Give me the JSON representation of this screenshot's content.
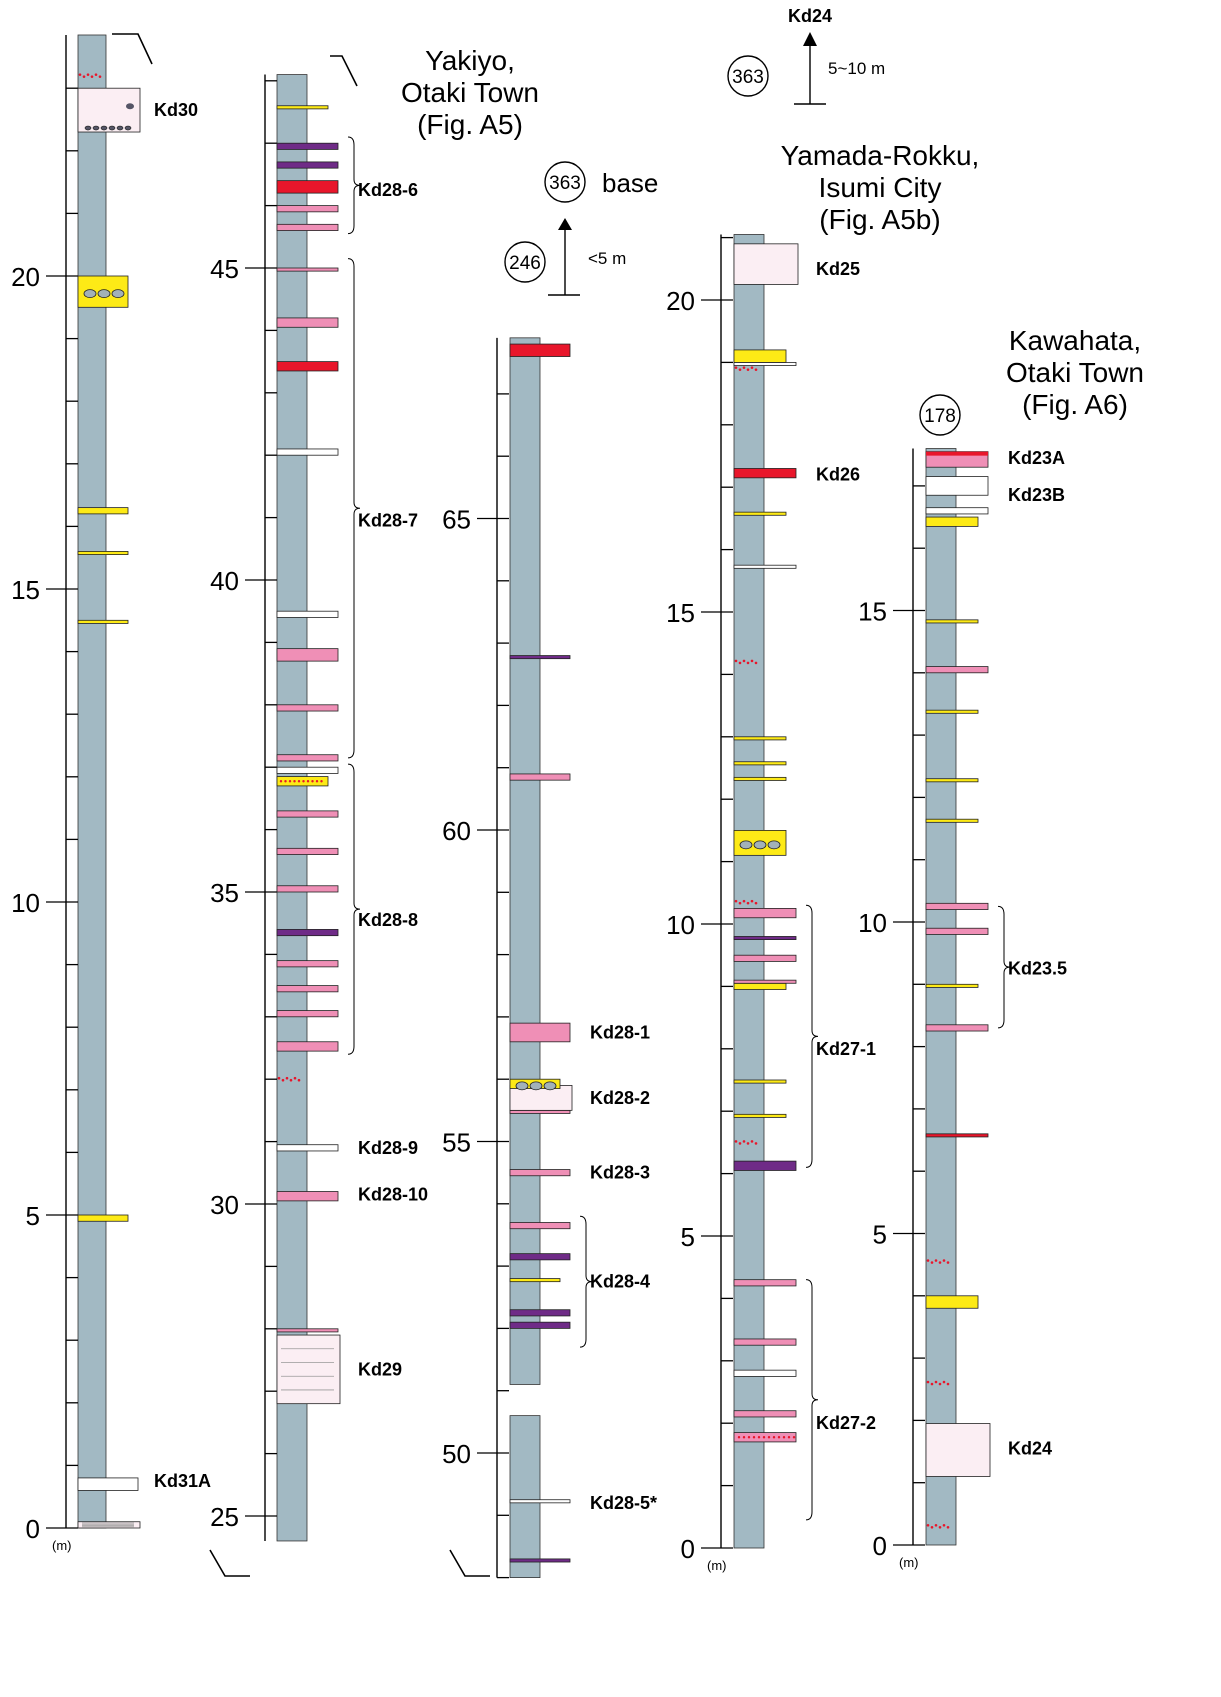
{
  "colors": {
    "column": "#a2b9c3",
    "pink": "#ef8fb6",
    "red": "#e8162b",
    "purple": "#6f2b87",
    "yellow": "#fdea16",
    "white": "#ffffff",
    "paleblock": "#fbeef3",
    "redDots": "#e8162b"
  },
  "unit_label": "(m)",
  "columns": [
    {
      "id": "c1",
      "title": [],
      "ticks": [
        "0",
        "5",
        "10",
        "15",
        "20"
      ],
      "layers": [
        {
          "top": 0.1,
          "base": 0.0,
          "kind": "block-lines"
        },
        {
          "top": 0.8,
          "base": 0.6,
          "kind": "white"
        },
        {
          "top": 5.0,
          "base": 4.9,
          "kind": "yellow"
        },
        {
          "top": 14.5,
          "base": 14.45,
          "kind": "yellow"
        },
        {
          "top": 15.6,
          "base": 15.55,
          "kind": "yellow"
        },
        {
          "top": 16.3,
          "base": 16.2,
          "kind": "yellow"
        },
        {
          "top": 20.0,
          "base": 19.5,
          "kind": "yellow-pebbles"
        },
        {
          "top": 23.0,
          "base": 22.3,
          "kind": "block-clasts"
        },
        {
          "top": 23.2,
          "base": 23.15,
          "kind": "reddots"
        }
      ],
      "tephra": [
        {
          "text": "Kd30",
          "depth": 22.65
        },
        {
          "text": "Kd31A",
          "depth": 0.75
        }
      ],
      "brackets": []
    },
    {
      "id": "c2",
      "title": [
        "Yakiyo,",
        "Otaki Town",
        "(Fig. A5)"
      ],
      "ticks": [
        "25",
        "30",
        "35",
        "40",
        "45"
      ],
      "layers": [
        {
          "top": 27.9,
          "base": 26.8,
          "kind": "block-lines"
        },
        {
          "top": 28.0,
          "base": 27.95,
          "kind": "pink"
        },
        {
          "top": 30.2,
          "base": 30.05,
          "kind": "pink"
        },
        {
          "top": 30.95,
          "base": 30.85,
          "kind": "white"
        },
        {
          "top": 32.0,
          "base": 31.95,
          "kind": "reddots"
        },
        {
          "top": 32.6,
          "base": 32.45,
          "kind": "pink"
        },
        {
          "top": 33.1,
          "base": 33.0,
          "kind": "pink"
        },
        {
          "top": 33.5,
          "base": 33.4,
          "kind": "pink"
        },
        {
          "top": 33.9,
          "base": 33.8,
          "kind": "pink"
        },
        {
          "top": 34.4,
          "base": 34.3,
          "kind": "purple"
        },
        {
          "top": 35.1,
          "base": 35.0,
          "kind": "pink"
        },
        {
          "top": 35.7,
          "base": 35.6,
          "kind": "pink"
        },
        {
          "top": 36.3,
          "base": 36.2,
          "kind": "pink"
        },
        {
          "top": 36.85,
          "base": 36.7,
          "kind": "yellow-dots"
        },
        {
          "top": 37.0,
          "base": 36.9,
          "kind": "white"
        },
        {
          "top": 37.2,
          "base": 37.1,
          "kind": "pink"
        },
        {
          "top": 38.0,
          "base": 37.9,
          "kind": "pink"
        },
        {
          "top": 38.9,
          "base": 38.7,
          "kind": "pink"
        },
        {
          "top": 39.5,
          "base": 39.4,
          "kind": "white"
        },
        {
          "top": 42.1,
          "base": 42.0,
          "kind": "white"
        },
        {
          "top": 43.5,
          "base": 43.35,
          "kind": "red"
        },
        {
          "top": 44.2,
          "base": 44.05,
          "kind": "pink"
        },
        {
          "top": 45.0,
          "base": 44.95,
          "kind": "pink"
        },
        {
          "top": 45.7,
          "base": 45.6,
          "kind": "pink"
        },
        {
          "top": 46.0,
          "base": 45.9,
          "kind": "pink"
        },
        {
          "top": 46.4,
          "base": 46.2,
          "kind": "red"
        },
        {
          "top": 46.7,
          "base": 46.6,
          "kind": "purple"
        },
        {
          "top": 47.0,
          "base": 46.9,
          "kind": "purple"
        },
        {
          "top": 47.6,
          "base": 47.55,
          "kind": "yellow"
        }
      ],
      "tephra": [
        {
          "text": "Kd28-6",
          "depth": 46.25
        },
        {
          "text": "Kd28-7",
          "depth": 40.95
        },
        {
          "text": "Kd28-8",
          "depth": 34.55
        },
        {
          "text": "Kd28-9",
          "depth": 30.9
        },
        {
          "text": "Kd28-10",
          "depth": 30.15
        },
        {
          "text": "Kd29",
          "depth": 27.35
        }
      ],
      "brackets": [
        {
          "top": 47.1,
          "base": 45.55
        },
        {
          "top": 45.15,
          "base": 37.15
        },
        {
          "top": 37.05,
          "base": 32.4
        }
      ]
    },
    {
      "id": "c3",
      "title": [],
      "ticks": [
        "50",
        "55",
        "60",
        "65"
      ],
      "layers": [
        {
          "top": 48.3,
          "base": 48.25,
          "kind": "purple"
        },
        {
          "top": 49.25,
          "base": 49.2,
          "kind": "white"
        },
        {
          "top": 52.1,
          "base": 52.0,
          "kind": "purple"
        },
        {
          "top": 52.3,
          "base": 52.2,
          "kind": "purple"
        },
        {
          "top": 52.8,
          "base": 52.75,
          "kind": "yellow"
        },
        {
          "top": 53.2,
          "base": 53.1,
          "kind": "purple"
        },
        {
          "top": 53.7,
          "base": 53.6,
          "kind": "pink"
        },
        {
          "top": 54.55,
          "base": 54.45,
          "kind": "pink"
        },
        {
          "top": 55.5,
          "base": 55.45,
          "kind": "pink"
        },
        {
          "top": 55.9,
          "base": 55.5,
          "kind": "white-block"
        },
        {
          "top": 56.0,
          "base": 55.85,
          "kind": "yellow-pebbles"
        },
        {
          "top": 56.9,
          "base": 56.6,
          "kind": "pink"
        },
        {
          "top": 60.9,
          "base": 60.8,
          "kind": "pink"
        },
        {
          "top": 62.8,
          "base": 62.75,
          "kind": "purple"
        },
        {
          "top": 67.8,
          "base": 67.6,
          "kind": "red"
        }
      ],
      "tephra": [
        {
          "text": "Kd28-1",
          "depth": 56.75
        },
        {
          "text": "Kd28-2",
          "depth": 55.7
        },
        {
          "text": "Kd28-3",
          "depth": 54.5
        },
        {
          "text": "Kd28-4",
          "depth": 52.75
        },
        {
          "text": "Kd28-5*",
          "depth": 49.2
        }
      ],
      "brackets": [
        {
          "top": 53.8,
          "base": 51.7
        }
      ],
      "marker": {
        "number": "363",
        "text": "base",
        "note": "<5 m"
      },
      "bottom_marker": {
        "number": "246"
      }
    },
    {
      "id": "c4",
      "title": [
        "Yamada-Rokku,",
        "Isumi City",
        "(Fig. A5b)"
      ],
      "ticks": [
        "0",
        "5",
        "10",
        "15",
        "20"
      ],
      "layers": [
        {
          "top": 1.85,
          "base": 1.7,
          "kind": "pink-dots"
        },
        {
          "top": 2.2,
          "base": 2.1,
          "kind": "pink"
        },
        {
          "top": 2.85,
          "base": 2.75,
          "kind": "white"
        },
        {
          "top": 3.35,
          "base": 3.25,
          "kind": "pink"
        },
        {
          "top": 4.3,
          "base": 4.2,
          "kind": "pink"
        },
        {
          "top": 6.2,
          "base": 6.05,
          "kind": "purple"
        },
        {
          "top": 6.5,
          "base": 6.4,
          "kind": "reddots"
        },
        {
          "top": 6.95,
          "base": 6.9,
          "kind": "yellow"
        },
        {
          "top": 7.5,
          "base": 7.45,
          "kind": "yellow"
        },
        {
          "top": 9.05,
          "base": 8.95,
          "kind": "yellow"
        },
        {
          "top": 9.1,
          "base": 9.05,
          "kind": "pink"
        },
        {
          "top": 9.5,
          "base": 9.4,
          "kind": "pink"
        },
        {
          "top": 9.8,
          "base": 9.75,
          "kind": "purple"
        },
        {
          "top": 10.25,
          "base": 10.1,
          "kind": "pink"
        },
        {
          "top": 10.35,
          "base": 10.3,
          "kind": "reddots"
        },
        {
          "top": 11.5,
          "base": 11.1,
          "kind": "yellow-pebbles"
        },
        {
          "top": 12.35,
          "base": 12.3,
          "kind": "yellow"
        },
        {
          "top": 12.6,
          "base": 12.55,
          "kind": "yellow"
        },
        {
          "top": 13.0,
          "base": 12.95,
          "kind": "yellow"
        },
        {
          "top": 14.2,
          "base": 14.15,
          "kind": "reddots"
        },
        {
          "top": 15.75,
          "base": 15.7,
          "kind": "white"
        },
        {
          "top": 16.6,
          "base": 16.55,
          "kind": "yellow"
        },
        {
          "top": 17.3,
          "base": 17.15,
          "kind": "red"
        },
        {
          "top": 19.0,
          "base": 18.95,
          "kind": "white"
        },
        {
          "top": 19.2,
          "base": 19.0,
          "kind": "yellow"
        },
        {
          "top": 18.9,
          "base": 18.85,
          "kind": "reddots"
        },
        {
          "top": 20.9,
          "base": 20.25,
          "kind": "block-plain"
        }
      ],
      "tephra": [
        {
          "text": "Kd25",
          "depth": 20.5
        },
        {
          "text": "Kd26",
          "depth": 17.2
        },
        {
          "text": "Kd27-1",
          "depth": 8.0
        },
        {
          "text": "Kd27-2",
          "depth": 2.0
        }
      ],
      "brackets": [
        {
          "top": 10.3,
          "base": 6.1
        },
        {
          "top": 4.3,
          "base": 0.45
        }
      ],
      "marker": {
        "number": "363",
        "text": "Kd24",
        "note": "5~10 m"
      }
    },
    {
      "id": "c5",
      "title": [
        "Kawahata,",
        "Otaki Town",
        "(Fig. A6)"
      ],
      "ticks": [
        "0",
        "5",
        "10",
        "15"
      ],
      "layers": [
        {
          "top": 0.3,
          "base": 0.25,
          "kind": "reddots"
        },
        {
          "top": 1.95,
          "base": 1.1,
          "kind": "block-plain"
        },
        {
          "top": 2.6,
          "base": 2.55,
          "kind": "reddots"
        },
        {
          "top": 4.0,
          "base": 3.8,
          "kind": "yellow"
        },
        {
          "top": 4.55,
          "base": 4.5,
          "kind": "reddots"
        },
        {
          "top": 6.6,
          "base": 6.55,
          "kind": "red"
        },
        {
          "top": 8.35,
          "base": 8.25,
          "kind": "pink"
        },
        {
          "top": 9.0,
          "base": 8.95,
          "kind": "yellow"
        },
        {
          "top": 9.9,
          "base": 9.8,
          "kind": "pink"
        },
        {
          "top": 10.3,
          "base": 10.2,
          "kind": "pink"
        },
        {
          "top": 11.65,
          "base": 11.6,
          "kind": "yellow"
        },
        {
          "top": 12.3,
          "base": 12.25,
          "kind": "yellow"
        },
        {
          "top": 13.4,
          "base": 13.35,
          "kind": "yellow"
        },
        {
          "top": 14.1,
          "base": 14.0,
          "kind": "pink"
        },
        {
          "top": 14.85,
          "base": 14.8,
          "kind": "yellow"
        },
        {
          "top": 16.5,
          "base": 16.35,
          "kind": "yellow"
        },
        {
          "top": 16.65,
          "base": 16.55,
          "kind": "white"
        },
        {
          "top": 17.15,
          "base": 16.85,
          "kind": "white"
        },
        {
          "top": 17.55,
          "base": 17.3,
          "kind": "pink-red"
        }
      ],
      "tephra": [
        {
          "text": "Kd23A",
          "depth": 17.45
        },
        {
          "text": "Kd23B",
          "depth": 16.85
        },
        {
          "text": "Kd23.5",
          "depth": 9.25
        },
        {
          "text": "Kd24",
          "depth": 1.55
        }
      ],
      "brackets": [
        {
          "top": 10.25,
          "base": 8.3
        }
      ],
      "bottom_marker": {
        "number": "178"
      }
    }
  ]
}
